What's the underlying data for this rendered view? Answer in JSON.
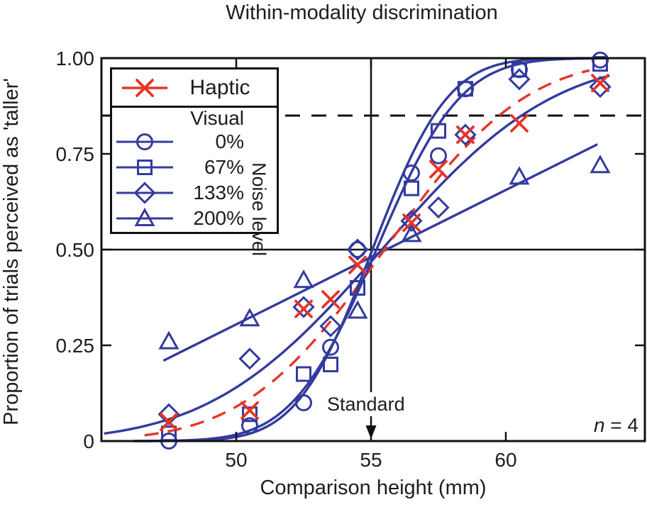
{
  "title": "Within-modality discrimination",
  "colors": {
    "blue": "#333b9e",
    "red": "#e63528",
    "frame": "#111111",
    "text": "#1d1d1d"
  },
  "axes": {
    "x": {
      "label": "Comparison height (mm)",
      "ticks": [
        50,
        55,
        60
      ],
      "range": [
        45,
        65.2
      ]
    },
    "y": {
      "label": "Proportion of trials perceived as 'taller'",
      "ticks": [
        0,
        0.25,
        0.5,
        0.75,
        1.0
      ],
      "tick_labels": [
        "0",
        "0.25",
        "0.50",
        "0.75",
        "1.00"
      ],
      "range": [
        0,
        1
      ]
    }
  },
  "legend": {
    "haptic_label": "Haptic",
    "visual_label": "Visual",
    "noise_label": "Noise level",
    "items": [
      {
        "label": "0%",
        "marker": "circle"
      },
      {
        "label": "67%",
        "marker": "square"
      },
      {
        "label": "133%",
        "marker": "diamond"
      },
      {
        "label": "200%",
        "marker": "triangle"
      }
    ]
  },
  "annotations": {
    "standard_label": "Standard",
    "standard_x": 55,
    "n_italic": "n",
    "n_rest": " = 4",
    "threshold_line_y": 0.85,
    "pse_line_y": 0.5
  },
  "chart_data": {
    "type": "scatter",
    "title": "Within-modality discrimination",
    "xlabel": "Comparison height (mm)",
    "ylabel": "Proportion of trials perceived as 'taller'",
    "xlim": [
      45,
      65.2
    ],
    "ylim": [
      0,
      1
    ],
    "reference_lines": {
      "horizontal_solid": 0.5,
      "horizontal_dashed": 0.85,
      "vertical_standard": 55
    },
    "series": [
      {
        "name": "Visual 200% noise",
        "marker": "triangle",
        "color": "blue",
        "line": "solid",
        "x": [
          47.5,
          50.5,
          52.5,
          54.5,
          56.5,
          60.5,
          63.5
        ],
        "y": [
          0.26,
          0.32,
          0.42,
          0.34,
          0.54,
          0.69,
          0.72
        ],
        "fit": {
          "kind": "linear",
          "x1": 47.3,
          "p1": 0.21,
          "x2": 63.4,
          "p2": 0.775
        }
      },
      {
        "name": "Visual 133% noise",
        "marker": "diamond",
        "color": "blue",
        "line": "solid",
        "x": [
          47.5,
          50.5,
          52.5,
          53.5,
          54.5,
          56.5,
          57.5,
          58.5,
          60.5,
          63.5
        ],
        "y": [
          0.07,
          0.215,
          0.35,
          0.3,
          0.5,
          0.575,
          0.61,
          0.8,
          0.945,
          0.925
        ],
        "fit": {
          "kind": "gauss_cdf",
          "mu": 55.4,
          "sigma": 5.0,
          "x_from": 45.1,
          "x_to": 63.9
        }
      },
      {
        "name": "Haptic",
        "marker": "x",
        "color": "red",
        "line": "dashed",
        "x": [
          47.5,
          50.5,
          52.5,
          53.5,
          54.5,
          56.5,
          57.5,
          58.5,
          60.5,
          63.5
        ],
        "y": [
          0.05,
          0.08,
          0.345,
          0.37,
          0.46,
          0.57,
          0.71,
          0.8,
          0.83,
          0.935
        ],
        "fit": {
          "kind": "gauss_cdf",
          "mu": 55.5,
          "sigma": 4.1,
          "x_from": 46.6,
          "x_to": 63.2
        }
      },
      {
        "name": "Visual 67% noise",
        "marker": "square",
        "color": "blue",
        "line": "solid",
        "x": [
          47.5,
          50.5,
          52.5,
          53.5,
          54.5,
          56.5,
          57.5,
          58.5,
          60.5,
          63.5
        ],
        "y": [
          0.02,
          0.07,
          0.175,
          0.2,
          0.4,
          0.66,
          0.81,
          0.92,
          0.97,
          0.985
        ],
        "fit": {
          "kind": "gauss_cdf",
          "mu": 55.2,
          "sigma": 2.45,
          "x_from": 46.2,
          "x_to": 63.8
        }
      },
      {
        "name": "Visual 0% noise",
        "marker": "circle",
        "color": "blue",
        "line": "solid",
        "x": [
          47.5,
          50.5,
          52.5,
          53.5,
          54.5,
          56.5,
          57.5,
          58.5,
          60.5,
          63.5
        ],
        "y": [
          0.0,
          0.04,
          0.1,
          0.245,
          0.5,
          0.7,
          0.745,
          0.92,
          0.97,
          0.995
        ],
        "fit": {
          "kind": "gauss_cdf",
          "mu": 55.05,
          "sigma": 2.2,
          "x_from": 46.2,
          "x_to": 63.8
        }
      }
    ]
  }
}
